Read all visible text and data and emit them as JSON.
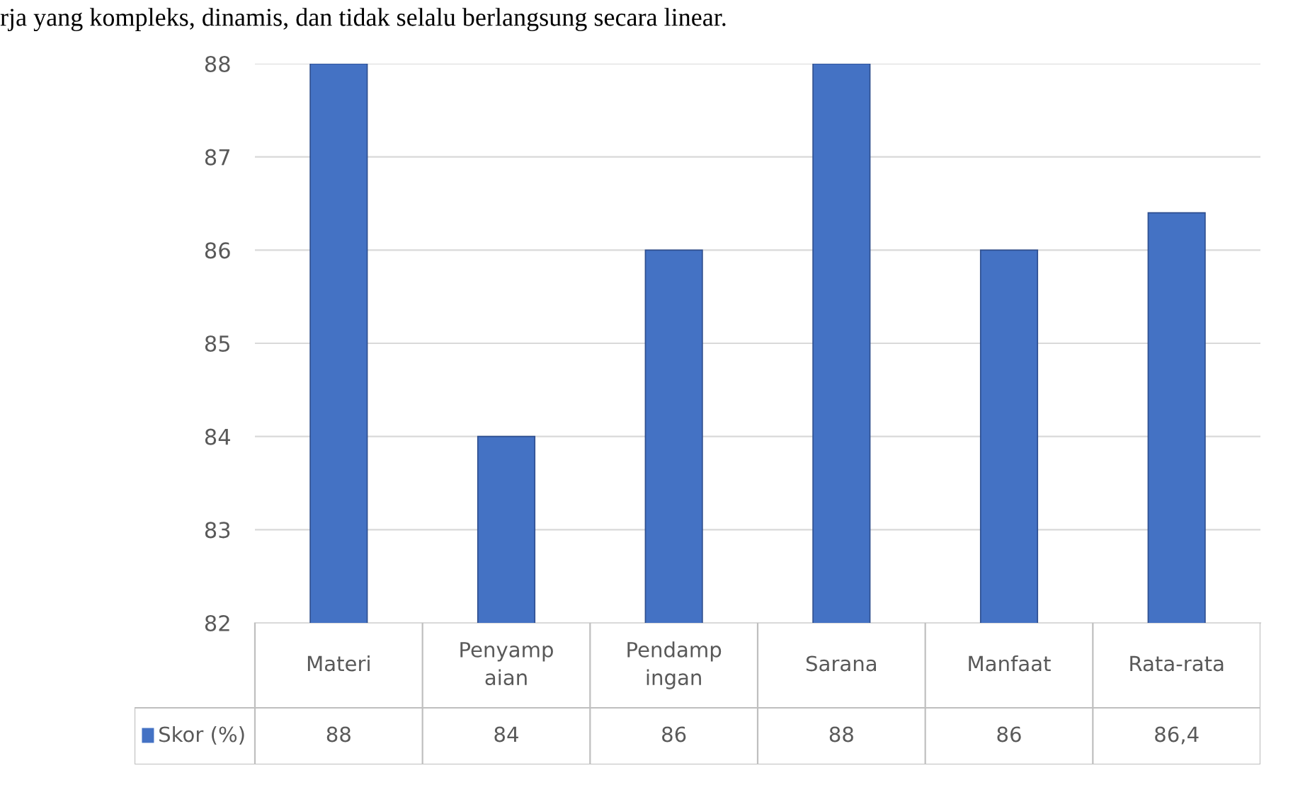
{
  "chart_data": {
    "type": "bar",
    "annotations": [
      "rja yang kompleks, dinamis, dan tidak selalu berlangsung secara linear."
    ],
    "categories": [
      "Materi",
      "Penyampaian",
      "Pendampingan",
      "Sarana",
      "Manfaat",
      "Rata-rata"
    ],
    "series": [
      {
        "name": "Skor (%)",
        "color": "#4472c4",
        "values": [
          88,
          84,
          86,
          88,
          86,
          86.4
        ],
        "value_labels": [
          "88",
          "84",
          "86",
          "88",
          "86",
          "86,4"
        ]
      }
    ],
    "ylim": [
      82,
      88
    ],
    "yticks": [
      82,
      83,
      84,
      85,
      86,
      87,
      88
    ],
    "grid": "y",
    "legend": "bottom"
  }
}
